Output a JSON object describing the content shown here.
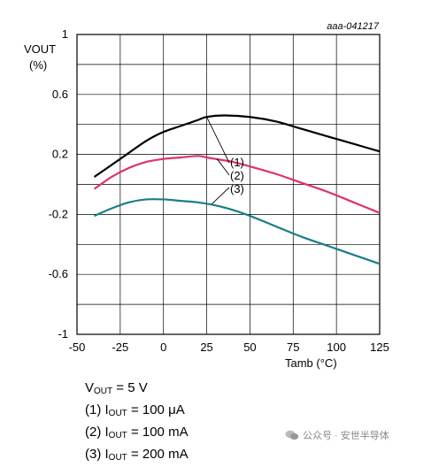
{
  "chart_data": {
    "type": "line",
    "title": "",
    "xlabel": "Tamb (°C)",
    "ylabel": "VOUT",
    "ylabel_unit": "(%)",
    "xlim": [
      -50,
      125
    ],
    "ylim": [
      -1,
      1
    ],
    "xticks": [
      -50,
      -25,
      0,
      25,
      50,
      75,
      100,
      125
    ],
    "yticks": [
      1,
      0.6,
      0.2,
      -0.2,
      -0.6,
      -1
    ],
    "xtick_labels": [
      "-50",
      "-25",
      "0",
      "25",
      "50",
      "75",
      "100",
      "125"
    ],
    "ytick_labels": [
      "1",
      "0.6",
      "0.2",
      "-0.2",
      "-0.6",
      "-1"
    ],
    "grid": true,
    "reference": "aaa-041217",
    "series": [
      {
        "name": "(1)",
        "color": "#000000",
        "x": [
          -40,
          -25,
          -10,
          0,
          10,
          20,
          25,
          35,
          50,
          65,
          80,
          95,
          110,
          125
        ],
        "y": [
          0.05,
          0.17,
          0.29,
          0.35,
          0.39,
          0.43,
          0.45,
          0.46,
          0.45,
          0.42,
          0.37,
          0.32,
          0.27,
          0.22
        ]
      },
      {
        "name": "(2)",
        "color": "#e0306a",
        "x": [
          -40,
          -30,
          -20,
          -10,
          0,
          10,
          20,
          25,
          30,
          40,
          50,
          65,
          80,
          95,
          110,
          125
        ],
        "y": [
          -0.03,
          0.05,
          0.11,
          0.15,
          0.17,
          0.18,
          0.19,
          0.18,
          0.17,
          0.15,
          0.12,
          0.07,
          0.01,
          -0.05,
          -0.12,
          -0.19
        ]
      },
      {
        "name": "(3)",
        "color": "#1a7d86",
        "x": [
          -40,
          -30,
          -20,
          -10,
          0,
          10,
          20,
          30,
          40,
          50,
          65,
          80,
          95,
          110,
          125
        ],
        "y": [
          -0.21,
          -0.16,
          -0.12,
          -0.1,
          -0.1,
          -0.11,
          -0.12,
          -0.14,
          -0.17,
          -0.21,
          -0.28,
          -0.35,
          -0.41,
          -0.47,
          -0.53
        ]
      }
    ],
    "annotations": [
      "(1)",
      "(2)",
      "(3)"
    ]
  },
  "notes": {
    "line1": {
      "prefix": "V",
      "sub": "OUT",
      "suffix": " = 5 V"
    },
    "line2": {
      "prefix": "(1) I",
      "sub": "OUT",
      "suffix": " = 100 μA"
    },
    "line3": {
      "prefix": "(2) I",
      "sub": "OUT",
      "suffix": " = 100 mA"
    },
    "line4": {
      "prefix": "(3) I",
      "sub": "OUT",
      "suffix": " = 200 mA"
    }
  },
  "watermark": {
    "text": "公众号 · 安世半导体",
    "icon": "wechat-icon"
  }
}
